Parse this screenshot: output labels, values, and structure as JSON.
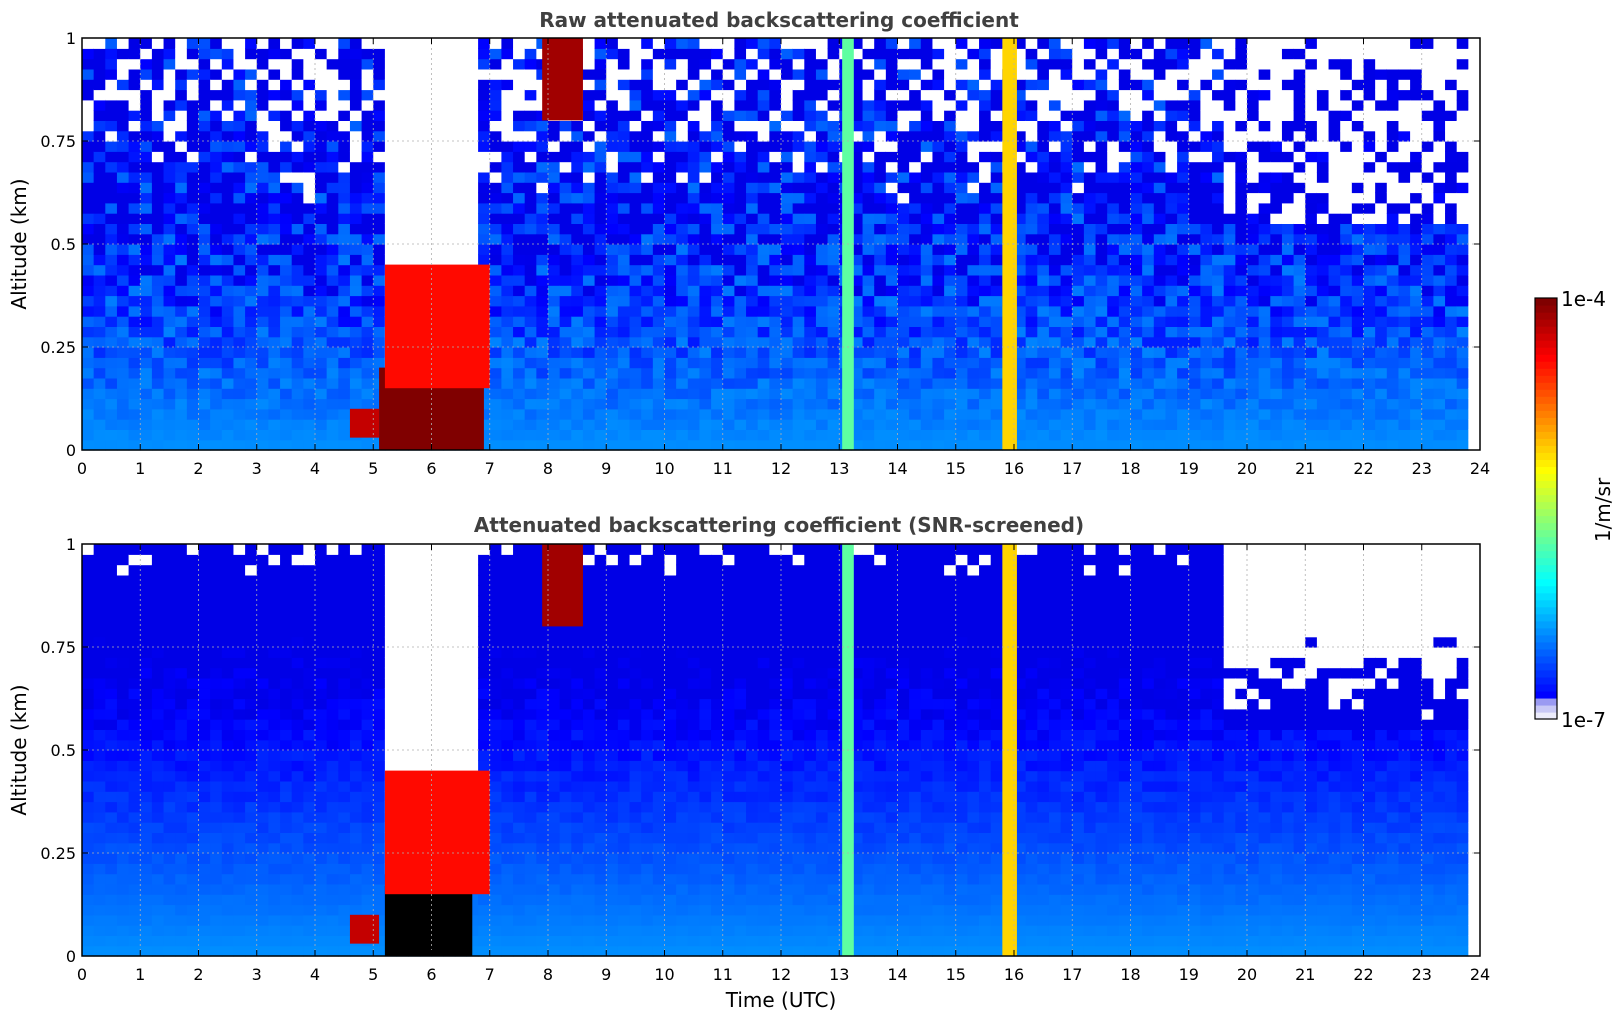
{
  "chart_data": [
    {
      "type": "heatmap",
      "title": "Raw attenuated backscattering coefficient",
      "xlabel": "",
      "ylabel": "Altitude (km)",
      "xlim": [
        0,
        24
      ],
      "ylim": [
        0,
        1
      ],
      "x_ticks": [
        "0",
        "1",
        "2",
        "3",
        "4",
        "5",
        "6",
        "7",
        "8",
        "9",
        "10",
        "11",
        "12",
        "13",
        "14",
        "15",
        "16",
        "17",
        "18",
        "19",
        "20",
        "21",
        "22",
        "23",
        "24"
      ],
      "y_ticks": [
        "0",
        "0.25",
        "0.5",
        "0.75",
        "1"
      ],
      "grid": true,
      "colormap": "jet",
      "noise_level": 0.75,
      "masked_regions": [
        {
          "x": [
            5.25,
            6.85
          ],
          "y_bottom": [
            0.2,
            0.17,
            0.17,
            0.21,
            0.28,
            0.38,
            0.45
          ],
          "y_top": 1.0,
          "fill": "#ffffff"
        }
      ],
      "features": [
        {
          "label": "fog base layer",
          "x": [
            5.1,
            6.9
          ],
          "y": [
            0.0,
            0.2
          ],
          "log_beta": -4.0
        },
        {
          "label": "fog top edge",
          "x": [
            5.2,
            7.0
          ],
          "y": [
            0.15,
            0.45
          ],
          "log_beta": -4.4
        },
        {
          "label": "aerosol layer",
          "x": [
            4.6,
            5.1
          ],
          "y": [
            0.03,
            0.1
          ],
          "log_beta": -4.2
        },
        {
          "label": "cloud aloft",
          "x": [
            7.9,
            8.6
          ],
          "y": [
            0.8,
            1.0
          ],
          "log_beta": -4.1
        },
        {
          "label": "precipitation streak",
          "x": [
            13.05,
            13.25
          ],
          "y": [
            0.0,
            1.0
          ],
          "log_beta": -5.6
        },
        {
          "label": "precipitation streak",
          "x": [
            15.8,
            16.05
          ],
          "y": [
            0.0,
            1.0
          ],
          "log_beta": -5.0
        }
      ]
    },
    {
      "type": "heatmap",
      "title": "Attenuated backscattering coefficient (SNR-screened)",
      "xlabel": "Time (UTC)",
      "ylabel": "Altitude (km)",
      "xlim": [
        0,
        24
      ],
      "ylim": [
        0,
        1
      ],
      "x_ticks": [
        "0",
        "1",
        "2",
        "3",
        "4",
        "5",
        "6",
        "7",
        "8",
        "9",
        "10",
        "11",
        "12",
        "13",
        "14",
        "15",
        "16",
        "17",
        "18",
        "19",
        "20",
        "21",
        "22",
        "23",
        "24"
      ],
      "y_ticks": [
        "0",
        "0.25",
        "0.5",
        "0.75",
        "1"
      ],
      "grid": true,
      "colormap": "jet",
      "noise_level": 0.15,
      "masked_regions": [
        {
          "x": [
            5.25,
            6.85
          ],
          "y_bottom": [
            0.2,
            0.17,
            0.17,
            0.21,
            0.28,
            0.38,
            0.45
          ],
          "y_top": 1.0,
          "fill": "#ffffff"
        }
      ],
      "features": [
        {
          "label": "fog core (saturated)",
          "x": [
            5.2,
            6.7
          ],
          "y": [
            0.0,
            0.17
          ],
          "log_beta": -3.5
        },
        {
          "label": "fog top edge",
          "x": [
            5.2,
            7.0
          ],
          "y": [
            0.15,
            0.45
          ],
          "log_beta": -4.4
        },
        {
          "label": "aerosol layer",
          "x": [
            4.6,
            5.1
          ],
          "y": [
            0.03,
            0.1
          ],
          "log_beta": -4.2
        },
        {
          "label": "cloud aloft",
          "x": [
            7.9,
            8.6
          ],
          "y": [
            0.8,
            1.0
          ],
          "log_beta": -4.1
        },
        {
          "label": "precipitation streak",
          "x": [
            13.05,
            13.25
          ],
          "y": [
            0.0,
            1.0
          ],
          "log_beta": -5.6
        },
        {
          "label": "precipitation streak",
          "x": [
            15.8,
            16.05
          ],
          "y": [
            0.0,
            1.0
          ],
          "log_beta": -5.0
        }
      ]
    }
  ],
  "colorbar": {
    "label": "1/m/sr",
    "max_label": "1e-4",
    "min_label": "1e-7",
    "range_log10": [
      -7,
      -4
    ],
    "colormap": "jet"
  }
}
